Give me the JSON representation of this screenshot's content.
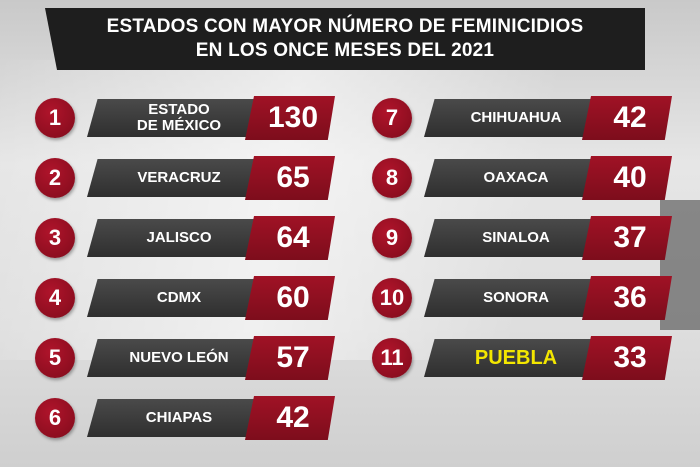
{
  "title": {
    "line1": "ESTADOS CON MAYOR NÚMERO DE FEMINICIDIOS",
    "line2": "EN LOS ONCE MESES DEL 2021"
  },
  "colors": {
    "accent": "#8e0e20",
    "bar": "#3a3a3a",
    "highlight_text": "#f3e600",
    "title_bg": "#1e1e1e"
  },
  "chart_data": {
    "type": "table",
    "title": "ESTADOS CON MAYOR NÚMERO DE FEMINICIDIOS EN LOS ONCE MESES DEL 2021",
    "rows": [
      {
        "rank": "1",
        "state": "ESTADO\nDE MÉXICO",
        "value": 130
      },
      {
        "rank": "2",
        "state": "VERACRUZ",
        "value": 65
      },
      {
        "rank": "3",
        "state": "JALISCO",
        "value": 64
      },
      {
        "rank": "4",
        "state": "CDMX",
        "value": 60
      },
      {
        "rank": "5",
        "state": "NUEVO LEÓN",
        "value": 57
      },
      {
        "rank": "6",
        "state": "CHIAPAS",
        "value": 42
      },
      {
        "rank": "7",
        "state": "CHIHUAHUA",
        "value": 42
      },
      {
        "rank": "8",
        "state": "OAXACA",
        "value": 40
      },
      {
        "rank": "9",
        "state": "SINALOA",
        "value": 37
      },
      {
        "rank": "10",
        "state": "SONORA",
        "value": 36
      },
      {
        "rank": "11",
        "state": "PUEBLA",
        "value": 33,
        "highlight": true
      }
    ]
  }
}
